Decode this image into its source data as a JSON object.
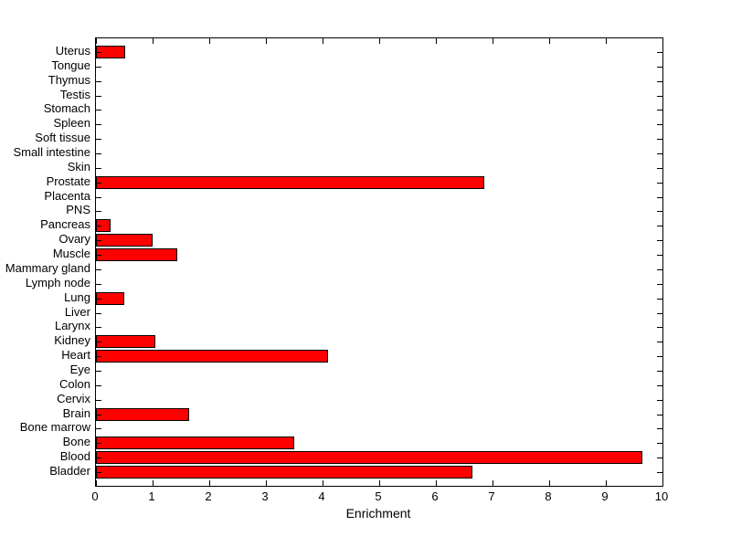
{
  "figure": {
    "background_color": "#FFFFFF",
    "axes_color": "#000000",
    "text_color": "#000000"
  },
  "chart_data": {
    "type": "bar",
    "orientation": "horizontal",
    "title": "",
    "xlabel": "Enrichment",
    "ylabel": "",
    "xlim": [
      0,
      10
    ],
    "xticks": [
      0,
      1,
      2,
      3,
      4,
      5,
      6,
      7,
      8,
      9,
      10
    ],
    "grid": false,
    "box": true,
    "tick_direction": "in",
    "bar_color": "#FF0000",
    "bar_edge_color": "#000000",
    "categories_top_to_bottom": [
      "Uterus",
      "Tongue",
      "Thymus",
      "Testis",
      "Stomach",
      "Spleen",
      "Soft tissue",
      "Small intestine",
      "Skin",
      "Prostate",
      "Placenta",
      "PNS",
      "Pancreas",
      "Ovary",
      "Muscle",
      "Mammary gland",
      "Lymph node",
      "Lung",
      "Liver",
      "Larynx",
      "Kidney",
      "Heart",
      "Eye",
      "Colon",
      "Cervix",
      "Brain",
      "Bone marrow",
      "Bone",
      "Blood",
      "Bladder"
    ],
    "values_top_to_bottom": [
      0.52,
      0,
      0,
      0,
      0,
      0,
      0,
      0,
      0,
      6.85,
      0,
      0,
      0.25,
      1.0,
      1.44,
      0,
      0,
      0.5,
      0,
      0,
      1.05,
      4.1,
      0,
      0,
      0,
      1.64,
      0,
      3.5,
      9.65,
      6.65
    ]
  }
}
